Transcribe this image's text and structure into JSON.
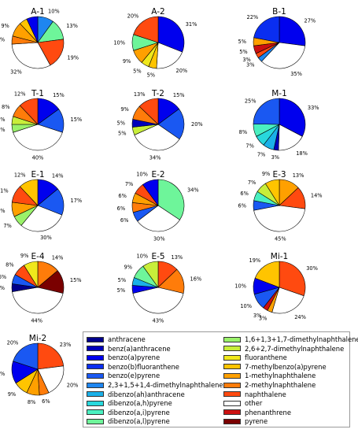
{
  "chart_data": {
    "type": "pie",
    "compounds": [
      {
        "name": "anthracene",
        "color": "#00008b"
      },
      {
        "name": "benz(a)anthracene",
        "color": "#0000bb"
      },
      {
        "name": "benzo(a)pyrene",
        "color": "#0000ee"
      },
      {
        "name": "benzo(b)fluoranthene",
        "color": "#0a2ef0"
      },
      {
        "name": "benzo(e)pyrene",
        "color": "#1a58f2"
      },
      {
        "name": "2,3+1,5+1,4-dimethylnaphthalene",
        "color": "#1e86f0"
      },
      {
        "name": "dibenzo(ah)anthracene",
        "color": "#1ab0e8"
      },
      {
        "name": "dibenzo(a,h)pyrene",
        "color": "#28d8dc"
      },
      {
        "name": "dibenzo(a,i)pyrene",
        "color": "#4af0c0"
      },
      {
        "name": "dibenzo(a,l)pyrene",
        "color": "#6ef59a"
      },
      {
        "name": "1,6+1,3+1,7-dimethylnaphthalene",
        "color": "#9af26a"
      },
      {
        "name": "2,6+2,7-dimethylnaphthalene",
        "color": "#c8ee3a"
      },
      {
        "name": "fluoranthene",
        "color": "#f0e81c"
      },
      {
        "name": "7-methylbenzo(a)pyrene",
        "color": "#ffc400"
      },
      {
        "name": "1-methylnaphthalene",
        "color": "#ffa000"
      },
      {
        "name": "2-methylnaphthalene",
        "color": "#ff7c0a"
      },
      {
        "name": "naphthalene",
        "color": "#ff4a10"
      },
      {
        "name": "other",
        "color": "#ffffff"
      },
      {
        "name": "phenanthrene",
        "color": "#cc1010"
      },
      {
        "name": "pyrene",
        "color": "#7a0000"
      }
    ],
    "pies": [
      {
        "title": "A-1",
        "slices": [
          {
            "compound": "2,3+1,5+1,4-dimethylnaphthalene",
            "value": 10,
            "label": "10%"
          },
          {
            "compound": "dibenzo(a,l)pyrene",
            "value": 13,
            "label": "13%"
          },
          {
            "compound": "naphthalene",
            "value": 19,
            "label": "19%"
          },
          {
            "compound": "other",
            "value": 32,
            "label": "32%"
          },
          {
            "compound": "2-methylnaphthalene",
            "value": 5,
            "label": "5%"
          },
          {
            "compound": "1-methylnaphthalene",
            "value": 9,
            "label": "9%"
          },
          {
            "compound": "7-methylbenzo(a)pyrene",
            "value": 5,
            "label": ""
          },
          {
            "compound": "benzo(a)pyrene",
            "value": 7,
            "label": ""
          }
        ]
      },
      {
        "title": "A-2",
        "slices": [
          {
            "compound": "benzo(a)pyrene",
            "value": 31,
            "label": "31%"
          },
          {
            "compound": "other",
            "value": 20,
            "label": "20%"
          },
          {
            "compound": "7-methylbenzo(a)pyrene",
            "value": 5,
            "label": "5%"
          },
          {
            "compound": "fluoranthene",
            "value": 5,
            "label": "5%"
          },
          {
            "compound": "1-methylnaphthalene",
            "value": 9,
            "label": "9%"
          },
          {
            "compound": "dibenzo(a,l)pyrene",
            "value": 10,
            "label": "10%"
          },
          {
            "compound": "naphthalene",
            "value": 20,
            "label": "20%"
          }
        ]
      },
      {
        "title": "B-1",
        "slices": [
          {
            "compound": "benzo(a)pyrene",
            "value": 27,
            "label": "27%"
          },
          {
            "compound": "other",
            "value": 35,
            "label": "35%"
          },
          {
            "compound": "2,3+1,5+1,4-dimethylnaphthalene",
            "value": 3,
            "label": "3%"
          },
          {
            "compound": "naphthalene",
            "value": 3,
            "label": "3%"
          },
          {
            "compound": "phenanthrene",
            "value": 5,
            "label": "5%"
          },
          {
            "compound": "1-methylnaphthalene",
            "value": 5,
            "label": "5%"
          },
          {
            "compound": "benzo(b)fluoranthene",
            "value": 22,
            "label": "22%"
          }
        ]
      },
      {
        "title": "T-1",
        "slices": [
          {
            "compound": "benzo(a)pyrene",
            "value": 15,
            "label": "15%"
          },
          {
            "compound": "benzo(e)pyrene",
            "value": 15,
            "label": "15%"
          },
          {
            "compound": "other",
            "value": 40,
            "label": "40%"
          },
          {
            "compound": "1,6+1,3+1,7-dimethylnaphthalene",
            "value": 5,
            "label": "5%"
          },
          {
            "compound": "2,6+2,7-dimethylnaphthalene",
            "value": 5,
            "label": "5%"
          },
          {
            "compound": "2-methylnaphthalene",
            "value": 8,
            "label": "8%"
          },
          {
            "compound": "naphthalene",
            "value": 12,
            "label": "12%"
          }
        ]
      },
      {
        "title": "T-2",
        "slices": [
          {
            "compound": "benzo(a)pyrene",
            "value": 15,
            "label": "15%"
          },
          {
            "compound": "benzo(e)pyrene",
            "value": 20,
            "label": "20%"
          },
          {
            "compound": "other",
            "value": 34,
            "label": "34%"
          },
          {
            "compound": "2,6+2,7-dimethylnaphthalene",
            "value": 5,
            "label": "5%"
          },
          {
            "compound": "benz(a)anthracene",
            "value": 5,
            "label": "5%"
          },
          {
            "compound": "2-methylnaphthalene",
            "value": 9,
            "label": "9%"
          },
          {
            "compound": "naphthalene",
            "value": 13,
            "label": "13%"
          }
        ]
      },
      {
        "title": "M-1",
        "slices": [
          {
            "compound": "benzo(a)pyrene",
            "value": 33,
            "label": "33%"
          },
          {
            "compound": "other",
            "value": 18,
            "label": "18%"
          },
          {
            "compound": "benz(a)anthracene",
            "value": 3,
            "label": "3%"
          },
          {
            "compound": "dibenzo(ah)anthracene",
            "value": 7,
            "label": "7%"
          },
          {
            "compound": "dibenzo(a,h)pyrene",
            "value": 7,
            "label": "7%"
          },
          {
            "compound": "dibenzo(a,i)pyrene",
            "value": 8,
            "label": "8%"
          },
          {
            "compound": "benzo(e)pyrene",
            "value": 25,
            "label": "25%"
          }
        ]
      },
      {
        "title": "E-1",
        "slices": [
          {
            "compound": "benzo(a)pyrene",
            "value": 14,
            "label": "14%"
          },
          {
            "compound": "benzo(e)pyrene",
            "value": 17,
            "label": "17%"
          },
          {
            "compound": "other",
            "value": 30,
            "label": "30%"
          },
          {
            "compound": "1,6+1,3+1,7-dimethylnaphthalene",
            "value": 7,
            "label": "7%"
          },
          {
            "compound": "1-methylnaphthalene",
            "value": 9,
            "label": "9%"
          },
          {
            "compound": "naphthalene",
            "value": 11,
            "label": "11%"
          },
          {
            "compound": "7-methylbenzo(a)pyrene",
            "value": 12,
            "label": "12%"
          }
        ]
      },
      {
        "title": "E-2",
        "slices": [
          {
            "compound": "dibenzo(a,l)pyrene",
            "value": 34,
            "label": "34%"
          },
          {
            "compound": "other",
            "value": 30,
            "label": "30%"
          },
          {
            "compound": "benzo(e)pyrene",
            "value": 6,
            "label": "6%"
          },
          {
            "compound": "2-methylnaphthalene",
            "value": 6,
            "label": "6%"
          },
          {
            "compound": "1-methylnaphthalene",
            "value": 6,
            "label": "6%"
          },
          {
            "compound": "naphthalene",
            "value": 7,
            "label": "7%"
          },
          {
            "compound": "benzo(a)pyrene",
            "value": 10,
            "label": "10%"
          }
        ]
      },
      {
        "title": "E-3",
        "slices": [
          {
            "compound": "1-methylnaphthalene",
            "value": 13,
            "label": "13%"
          },
          {
            "compound": "naphthalene",
            "value": 14,
            "label": "14%"
          },
          {
            "compound": "other",
            "value": 45,
            "label": "45%"
          },
          {
            "compound": "benzo(e)pyrene",
            "value": 6,
            "label": "6%"
          },
          {
            "compound": "dibenzo(a,i)pyrene",
            "value": 6,
            "label": "6%"
          },
          {
            "compound": "2,6+2,7-dimethylnaphthalene",
            "value": 7,
            "label": "7%"
          },
          {
            "compound": "7-methylbenzo(a)pyrene",
            "value": 9,
            "label": "9%"
          }
        ]
      },
      {
        "title": "E-4",
        "slices": [
          {
            "compound": "2-methylnaphthalene",
            "value": 14,
            "label": "14%"
          },
          {
            "compound": "pyrene",
            "value": 15,
            "label": "15%"
          },
          {
            "compound": "other",
            "value": 44,
            "label": "44%"
          },
          {
            "compound": "anthracene",
            "value": 5,
            "label": "5%"
          },
          {
            "compound": "benzo(e)pyrene",
            "value": 6,
            "label": "6%"
          },
          {
            "compound": "naphthalene",
            "value": 8,
            "label": "8%"
          },
          {
            "compound": "fluoranthene",
            "value": 9,
            "label": "9%"
          }
        ]
      },
      {
        "title": "E-5",
        "slices": [
          {
            "compound": "naphthalene",
            "value": 13,
            "label": "13%"
          },
          {
            "compound": "2-methylnaphthalene",
            "value": 16,
            "label": "16%"
          },
          {
            "compound": "other",
            "value": 43,
            "label": "43%"
          },
          {
            "compound": "benzo(a)pyrene",
            "value": 5,
            "label": "5%"
          },
          {
            "compound": "dibenzo(ah)anthracene",
            "value": 5,
            "label": "5%"
          },
          {
            "compound": "dibenzo(a,l)pyrene",
            "value": 9,
            "label": "9%"
          },
          {
            "compound": "2,6+2,7-dimethylnaphthalene",
            "value": 10,
            "label": "10%"
          }
        ]
      },
      {
        "title": "Mi-1",
        "slices": [
          {
            "compound": "naphthalene",
            "value": 30,
            "label": "30%"
          },
          {
            "compound": "other",
            "value": 24,
            "label": "24%"
          },
          {
            "compound": "1-methylnaphthalene",
            "value": 3,
            "label": "3%"
          },
          {
            "compound": "phenanthrene",
            "value": 3,
            "label": "3%"
          },
          {
            "compound": "benzo(e)pyrene",
            "value": 10,
            "label": "10%"
          },
          {
            "compound": "benzo(a)pyrene",
            "value": 10,
            "label": "10%"
          },
          {
            "compound": "7-methylbenzo(a)pyrene",
            "value": 19,
            "label": "19%"
          }
        ]
      },
      {
        "title": "Mi-2",
        "slices": [
          {
            "compound": "naphthalene",
            "value": 23,
            "label": "23%"
          },
          {
            "compound": "other",
            "value": 20,
            "label": "20%"
          },
          {
            "compound": "2-methylnaphthalene",
            "value": 6,
            "label": "6%"
          },
          {
            "compound": "1-methylnaphthalene",
            "value": 8,
            "label": "8%"
          },
          {
            "compound": "7-methylbenzo(a)pyrene",
            "value": 9,
            "label": "9%"
          },
          {
            "compound": "benzo(a)pyrene",
            "value": 14,
            "label": "14%"
          },
          {
            "compound": "benzo(e)pyrene",
            "value": 20,
            "label": "20%"
          }
        ]
      }
    ],
    "legend": {
      "placement": "bottom-right",
      "columns": 2
    }
  }
}
